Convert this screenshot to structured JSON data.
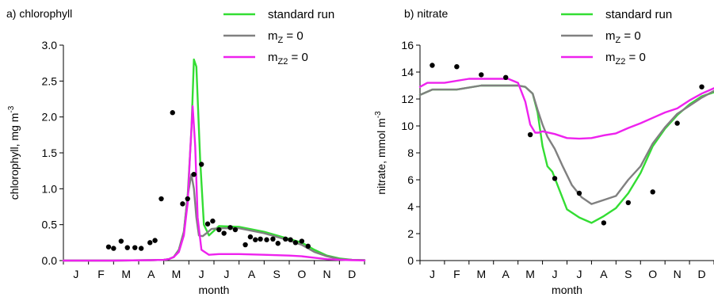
{
  "chart_data": [
    {
      "type": "line",
      "title": "a) chlorophyll",
      "xlabel": "month",
      "ylabel": "chlorophyll, mg m",
      "ylabel_sup": "-3",
      "categories": [
        "J",
        "F",
        "M",
        "A",
        "M",
        "J",
        "J",
        "A",
        "S",
        "O",
        "N",
        "D"
      ],
      "ylim": [
        0,
        3.0
      ],
      "yticks": [
        "0.0",
        "0.5",
        "1.0",
        "1.5",
        "2.0",
        "2.5",
        "3.0"
      ],
      "legend_position": "top-right",
      "legend": [
        {
          "name": "standard run",
          "sub": "",
          "rest": "",
          "color": "#33dd33"
        },
        {
          "name": "m",
          "sub": "Z",
          "rest": " = 0",
          "color": "#808080"
        },
        {
          "name": "m",
          "sub": "Z2",
          "rest": " = 0",
          "color": "#ee22ee"
        }
      ],
      "series": [
        {
          "name": "standard run",
          "color": "#33dd33",
          "x": [
            0,
            2,
            3.5,
            4,
            4.2,
            4.4,
            4.6,
            4.8,
            4.95,
            5.1,
            5.2,
            5.3,
            5.45,
            5.6,
            5.8,
            6.2,
            7,
            8,
            9,
            9.5,
            10,
            10.5,
            11,
            11.5,
            12
          ],
          "y": [
            0,
            0,
            0.005,
            0.01,
            0.02,
            0.05,
            0.15,
            0.4,
            0.9,
            1.8,
            2.8,
            2.7,
            1.4,
            0.5,
            0.35,
            0.48,
            0.47,
            0.4,
            0.3,
            0.25,
            0.15,
            0.07,
            0.03,
            0.01,
            0.005
          ]
        },
        {
          "name": "m_Z = 0",
          "color": "#808080",
          "x": [
            0,
            2,
            3.5,
            4,
            4.2,
            4.4,
            4.6,
            4.8,
            4.95,
            5.1,
            5.2,
            5.3,
            5.4,
            5.55,
            5.7,
            5.9,
            6.2,
            7,
            8,
            9,
            9.5,
            10,
            10.5,
            11,
            11.5,
            12
          ],
          "y": [
            0,
            0,
            0.005,
            0.01,
            0.02,
            0.05,
            0.15,
            0.4,
            0.9,
            1.2,
            1.0,
            0.6,
            0.35,
            0.34,
            0.38,
            0.44,
            0.45,
            0.45,
            0.38,
            0.28,
            0.22,
            0.12,
            0.06,
            0.02,
            0.01,
            0.005
          ]
        },
        {
          "name": "m_Z2 = 0",
          "color": "#ee22ee",
          "x": [
            0,
            2,
            3.5,
            4,
            4.2,
            4.4,
            4.6,
            4.8,
            4.95,
            5.05,
            5.15,
            5.25,
            5.35,
            5.5,
            5.8,
            6.2,
            7,
            8,
            9,
            9.5,
            10,
            10.5,
            11,
            11.5,
            12
          ],
          "y": [
            0,
            0,
            0.005,
            0.01,
            0.02,
            0.05,
            0.12,
            0.35,
            0.8,
            1.5,
            2.15,
            1.6,
            0.6,
            0.15,
            0.08,
            0.09,
            0.09,
            0.08,
            0.07,
            0.06,
            0.04,
            0.02,
            0.01,
            0.005,
            0.002
          ]
        }
      ],
      "observations": {
        "x": [
          1.8,
          2.0,
          2.3,
          2.55,
          2.85,
          3.1,
          3.45,
          3.65,
          3.9,
          4.35,
          4.75,
          4.95,
          5.2,
          5.5,
          5.75,
          5.95,
          6.2,
          6.4,
          6.65,
          6.85,
          7.25,
          7.45,
          7.65,
          7.85,
          8.1,
          8.35,
          8.55,
          8.85,
          9.05,
          9.25,
          9.5,
          9.75
        ],
        "y": [
          0.19,
          0.17,
          0.27,
          0.18,
          0.18,
          0.17,
          0.25,
          0.28,
          0.86,
          2.06,
          0.79,
          0.86,
          1.2,
          1.34,
          0.51,
          0.55,
          0.43,
          0.38,
          0.46,
          0.43,
          0.22,
          0.33,
          0.29,
          0.3,
          0.29,
          0.3,
          0.24,
          0.3,
          0.29,
          0.25,
          0.27,
          0.2
        ]
      }
    },
    {
      "type": "line",
      "title": "b) nitrate",
      "xlabel": "month",
      "ylabel": "nitrate, mmol m",
      "ylabel_sup": "-3",
      "categories": [
        "J",
        "F",
        "M",
        "A",
        "M",
        "J",
        "J",
        "A",
        "S",
        "O",
        "N",
        "D"
      ],
      "ylim": [
        0,
        16
      ],
      "yticks": [
        "0",
        "2",
        "4",
        "6",
        "8",
        "10",
        "12",
        "14",
        "16"
      ],
      "legend_position": "top-right",
      "legend": [
        {
          "name": "standard run",
          "sub": "",
          "rest": "",
          "color": "#33dd33"
        },
        {
          "name": "m",
          "sub": "Z",
          "rest": " = 0",
          "color": "#808080"
        },
        {
          "name": "m",
          "sub": "Z2",
          "rest": " = 0",
          "color": "#ee22ee"
        }
      ],
      "series": [
        {
          "name": "standard run",
          "color": "#33dd33",
          "x": [
            0,
            0.5,
            1.5,
            2.5,
            3.5,
            4,
            4.3,
            4.6,
            4.8,
            5.0,
            5.2,
            5.4,
            5.7,
            6.0,
            6.5,
            7.0,
            7.5,
            8,
            8.5,
            9.0,
            9.5,
            10.0,
            10.5,
            11,
            11.5,
            12
          ],
          "y": [
            12.3,
            12.7,
            12.7,
            13.0,
            13.0,
            13.0,
            12.9,
            12.4,
            11,
            8.5,
            7.0,
            6.6,
            5.2,
            3.8,
            3.2,
            2.8,
            3.3,
            3.9,
            5.0,
            6.5,
            8.5,
            9.8,
            10.8,
            11.6,
            12.2,
            12.5
          ]
        },
        {
          "name": "m_Z = 0",
          "color": "#808080",
          "x": [
            0,
            0.5,
            1.5,
            2.5,
            3.5,
            4,
            4.3,
            4.6,
            4.8,
            5.0,
            5.2,
            5.5,
            5.8,
            6.2,
            6.6,
            7.0,
            7.5,
            8,
            8.5,
            9.0,
            9.5,
            10.0,
            10.5,
            11,
            11.5,
            12
          ],
          "y": [
            12.3,
            12.7,
            12.7,
            13.0,
            13.0,
            13.0,
            12.9,
            12.4,
            11.2,
            10.1,
            9.2,
            8.3,
            7.1,
            5.6,
            4.7,
            4.2,
            4.5,
            4.8,
            6.0,
            7.0,
            8.7,
            9.9,
            10.9,
            11.5,
            12.1,
            12.6
          ]
        },
        {
          "name": "m_Z2 = 0",
          "color": "#ee22ee",
          "x": [
            0,
            0.3,
            1,
            2,
            3,
            3.6,
            4,
            4.3,
            4.5,
            4.7,
            4.85,
            5,
            5.5,
            6,
            6.5,
            7,
            7.5,
            8,
            8.5,
            9,
            9.5,
            10,
            10.5,
            11,
            11.5,
            12
          ],
          "y": [
            12.9,
            13.2,
            13.2,
            13.5,
            13.5,
            13.5,
            13.2,
            11.8,
            10.1,
            9.5,
            9.5,
            9.6,
            9.4,
            9.1,
            9.05,
            9.1,
            9.3,
            9.45,
            9.85,
            10.2,
            10.6,
            11.0,
            11.3,
            11.9,
            12.4,
            12.8
          ]
        }
      ],
      "observations": {
        "x": [
          0.5,
          1.5,
          2.5,
          3.5,
          4.5,
          5.5,
          6.5,
          7.5,
          8.5,
          9.5,
          10.5,
          11.5
        ],
        "y": [
          14.5,
          14.4,
          13.8,
          13.6,
          9.35,
          6.1,
          5.0,
          2.8,
          4.3,
          5.1,
          10.2,
          12.9
        ]
      }
    }
  ]
}
